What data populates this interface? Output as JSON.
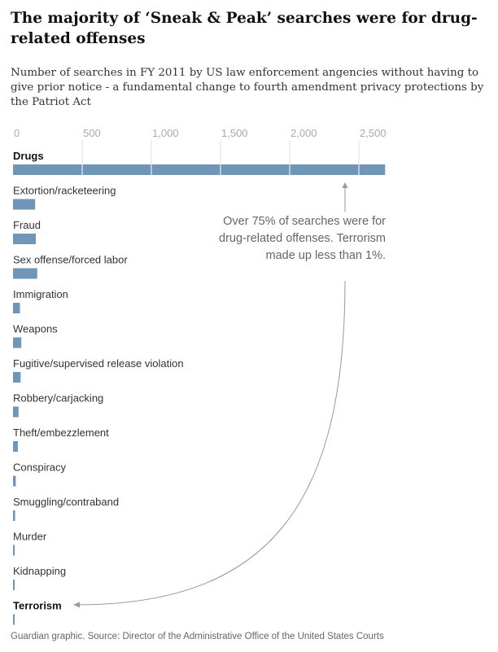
{
  "title": "The majority of ‘Sneak & Peak’ searches were for drug-related offenses",
  "subtitle": "Number of searches in FY 2011 by US law enforcement angencies without having to give prior notice - a fundamental change to fourth amendment privacy protections by the Patriot Act",
  "annotation": "Over 75% of searches were for drug-related offenses. Terrorism made up less than 1%.",
  "source": "Guardian graphic. Source: Director of the Administrative Office of the United States Courts",
  "colors": {
    "bar": "#6f96b7",
    "grid": "#ffffff",
    "arrow": "#999999"
  },
  "chart_data": {
    "type": "bar",
    "orientation": "horizontal",
    "title": "The majority of ‘Sneak & Peak’ searches were for drug-related offenses",
    "xlabel": "",
    "ylabel": "",
    "xlim": [
      0,
      2700
    ],
    "ticks": [
      0,
      500,
      1000,
      1500,
      2000,
      2500
    ],
    "tick_labels": [
      "0",
      "500",
      "1,000",
      "1,500",
      "2,000",
      "2,500"
    ],
    "categories": [
      "Drugs",
      "Extortion/racketeering",
      "Fraud",
      "Sex offense/forced labor",
      "Immigration",
      "Weapons",
      "Fugitive/supervised release violation",
      "Robbery/carjacking",
      "Theft/embezzlement",
      "Conspiracy",
      "Smuggling/contraband",
      "Murder",
      "Kidnapping",
      "Terrorism"
    ],
    "highlighted": [
      "Drugs",
      "Terrorism"
    ],
    "values": [
      2690,
      160,
      165,
      175,
      50,
      60,
      55,
      40,
      35,
      20,
      15,
      12,
      12,
      12
    ]
  }
}
